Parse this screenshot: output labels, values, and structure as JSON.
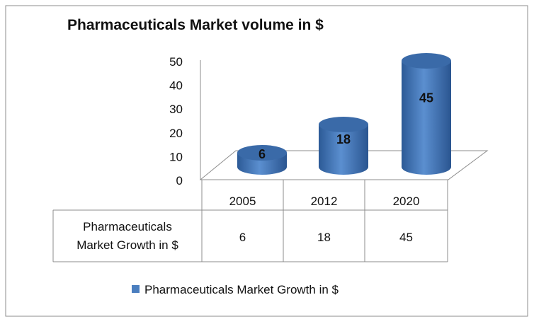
{
  "chart_data": {
    "type": "bar",
    "title": "Pharmaceuticals Market volume in $",
    "categories": [
      "2005",
      "2012",
      "2020"
    ],
    "series": [
      {
        "name": "Pharmaceuticals Market Growth in $",
        "values": [
          6,
          18,
          45
        ]
      }
    ],
    "data_labels": [
      "6",
      "18",
      "45"
    ],
    "yticks": [
      "0",
      "10",
      "20",
      "30",
      "40",
      "50"
    ],
    "ylim": [
      0,
      50
    ],
    "legend": "bottom",
    "data_table": {
      "row_header": "Pharmaceuticals Market Growth in $",
      "row_header_lines": [
        "Pharmaceuticals",
        "Market Growth in $"
      ],
      "values": [
        "6",
        "18",
        "45"
      ]
    },
    "colors": {
      "bar": "#4a7ebf",
      "bar_dark": "#2f5d99",
      "bar_top": "#3a6aa8"
    }
  }
}
